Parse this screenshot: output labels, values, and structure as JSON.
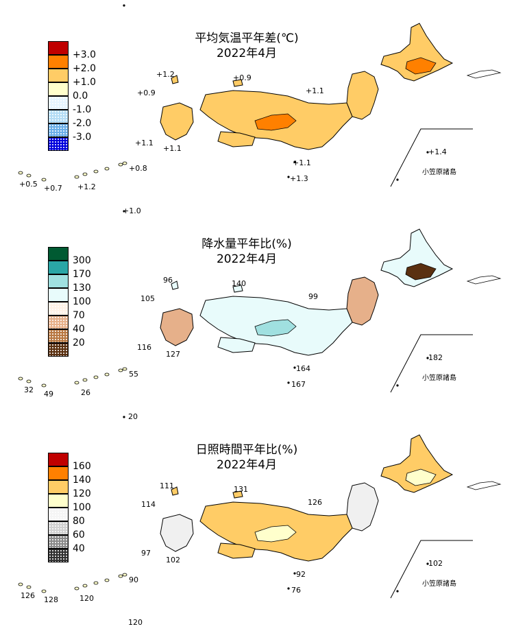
{
  "maps": [
    {
      "id": "temp",
      "title": "平均気温平年差(℃)",
      "subtitle": "2022年4月",
      "legend": {
        "labels": [
          "+3.0",
          "+2.0",
          "+1.0",
          "0.0",
          "-1.0",
          "-2.0",
          "-3.0"
        ],
        "colors": [
          "#c00000",
          "#ff8000",
          "#ffcc66",
          "#ffffcc",
          "#e6f5ff",
          "#b3dcf5",
          "#6aaee8",
          "#0000dd"
        ],
        "patterns": [
          "solid",
          "solid",
          "solid",
          "solid",
          "dots",
          "dots",
          "dots",
          "dots"
        ]
      },
      "values": [
        "+1.2",
        "+0.9",
        "+0.9",
        "+1.1",
        "+1.1",
        "+1.1",
        "+1.1",
        "+1.3",
        "+1.4",
        "+0.5",
        "+0.7",
        "+1.2",
        "+0.8",
        "+1.0"
      ],
      "region_colors": [
        "#ffcc66",
        "#ff8000",
        "#ffcc66",
        "#ffffcc"
      ],
      "inset_label": "小笠原諸島"
    },
    {
      "id": "precip",
      "title": "降水量平年比(%)",
      "subtitle": "2022年4月",
      "legend": {
        "labels": [
          "300",
          "170",
          "130",
          "100",
          "70",
          "40",
          "20"
        ],
        "colors": [
          "#005a32",
          "#2aa6a6",
          "#a0e0e0",
          "#e8fbfb",
          "#fff2e6",
          "#e6b08a",
          "#b87842",
          "#5a3010"
        ],
        "patterns": [
          "solid",
          "solid",
          "solid",
          "solid",
          "dots",
          "dots",
          "dots",
          "dots"
        ]
      },
      "values": [
        "96",
        "140",
        "105",
        "99",
        "116",
        "127",
        "164",
        "167",
        "182",
        "32",
        "49",
        "26",
        "55",
        "20"
      ],
      "region_colors": [
        "#e8fbfb",
        "#a0e0e0",
        "#e6b08a",
        "#5a3010"
      ],
      "inset_label": "小笠原諸島"
    },
    {
      "id": "sun",
      "title": "日照時間平年比(%)",
      "subtitle": "2022年4月",
      "legend": {
        "labels": [
          "160",
          "140",
          "120",
          "100",
          "80",
          "60",
          "40"
        ],
        "colors": [
          "#c00000",
          "#ff8000",
          "#ffcc66",
          "#ffffcc",
          "#f5f5f5",
          "#d0d0d0",
          "#8a8a8a",
          "#303030"
        ],
        "patterns": [
          "solid",
          "solid",
          "solid",
          "solid",
          "dots",
          "dots",
          "dots",
          "dots"
        ]
      },
      "values": [
        "111",
        "131",
        "114",
        "126",
        "97",
        "102",
        "92",
        "76",
        "102",
        "126",
        "128",
        "120",
        "90",
        "120"
      ],
      "region_colors": [
        "#ffcc66",
        "#ffffcc",
        "#f0f0f0",
        "#ff8000"
      ],
      "inset_label": "小笠原諸島"
    }
  ]
}
